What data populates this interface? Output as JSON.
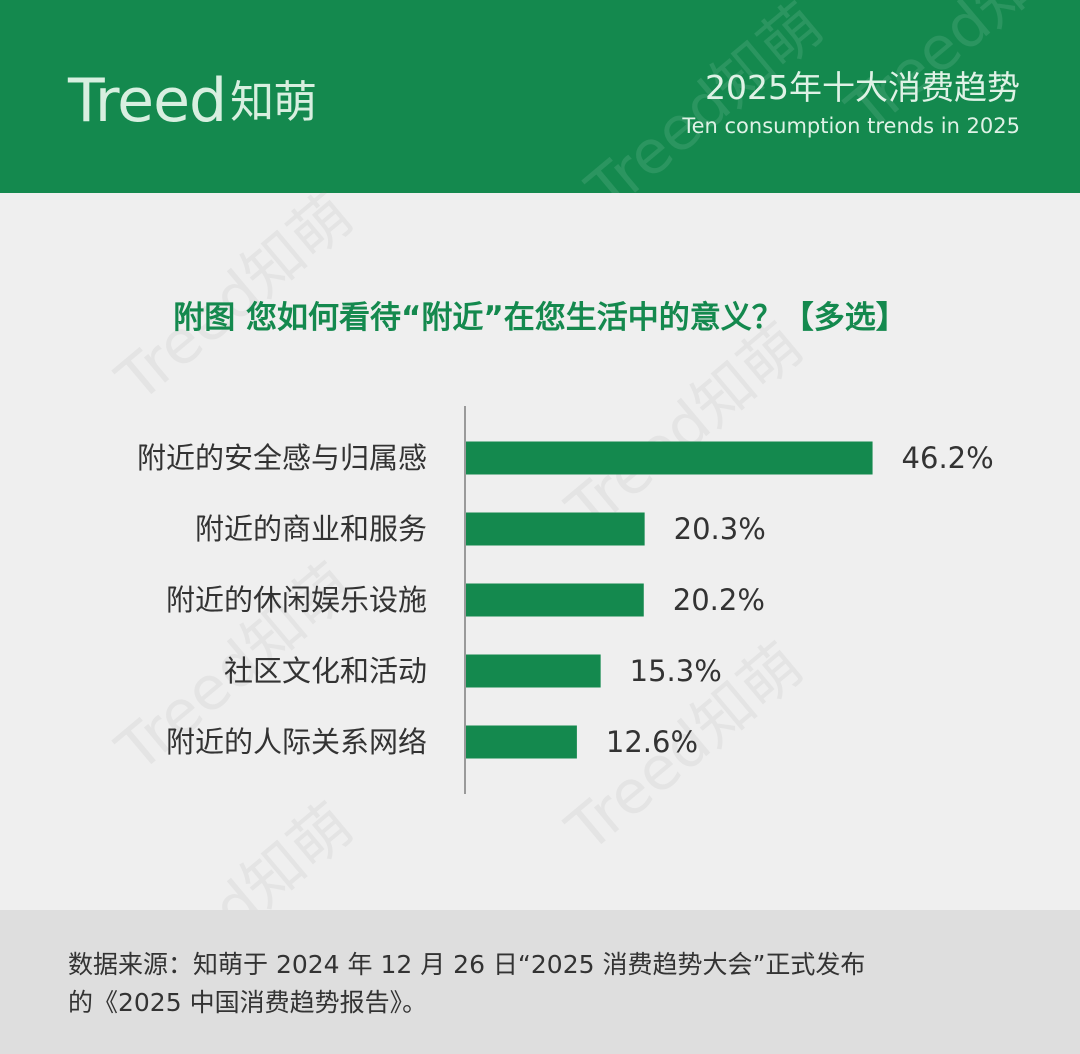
{
  "header": {
    "logo_brand": "Treed",
    "logo_cn": "知萌",
    "title_cn": "2025年十大消费趋势",
    "title_en": "Ten consumption trends in 2025"
  },
  "watermark": "Treed知萌",
  "colors": {
    "accent": "#14894e",
    "bar": "#14894e"
  },
  "chart_data": {
    "type": "bar",
    "orientation": "horizontal",
    "title": "附图 您如何看待“附近”在您生活中的意义？【多选】",
    "categories": [
      "附近的安全感与归属感",
      "附近的商业和服务",
      "附近的休闲娱乐设施",
      "社区文化和活动",
      "附近的人际关系网络"
    ],
    "values": [
      46.2,
      20.3,
      20.2,
      15.3,
      12.6
    ],
    "value_labels": [
      "46.2%",
      "20.3%",
      "20.2%",
      "15.3%",
      "12.6%"
    ],
    "xlim": [
      0,
      50
    ],
    "grid": false,
    "legend": "none"
  },
  "footer": {
    "source_line1": "数据来源：知萌于 2024 年 12 月 26 日“2025 消费趋势大会”正式发布",
    "source_line2": "的《2025 中国消费趋势报告》。"
  }
}
